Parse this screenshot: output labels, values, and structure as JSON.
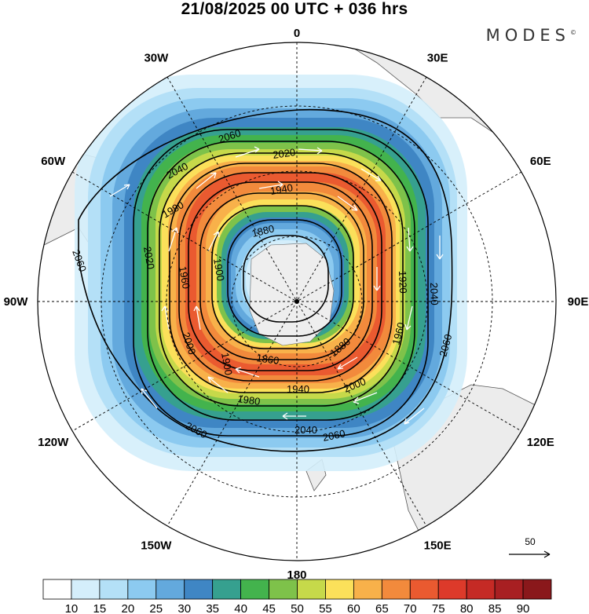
{
  "title": "21/08/2025  00 UTC  + 036 hrs",
  "brand": "MODES",
  "brand_mark": "©",
  "longitude_labels": [
    {
      "text": "0",
      "angle": 0
    },
    {
      "text": "30E",
      "angle": 30
    },
    {
      "text": "60E",
      "angle": 60
    },
    {
      "text": "90E",
      "angle": 90
    },
    {
      "text": "120E",
      "angle": 120
    },
    {
      "text": "150E",
      "angle": 150
    },
    {
      "text": "180",
      "angle": 180
    },
    {
      "text": "150W",
      "angle": 210
    },
    {
      "text": "120W",
      "angle": 240
    },
    {
      "text": "90W",
      "angle": 270
    },
    {
      "text": "60W",
      "angle": 300
    },
    {
      "text": "30W",
      "angle": 330
    }
  ],
  "contour_labels": [
    "2060",
    "2040",
    "2020",
    "2000",
    "1980",
    "1960",
    "1940",
    "1920",
    "1900",
    "1880",
    "1860"
  ],
  "reference_vector": {
    "value": "50"
  },
  "colorbar": {
    "ticks": [
      "10",
      "15",
      "20",
      "25",
      "30",
      "35",
      "40",
      "45",
      "50",
      "55",
      "60",
      "65",
      "70",
      "75",
      "80",
      "85",
      "90"
    ],
    "colors": [
      "#ffffff",
      "#d4eefb",
      "#b4e0f7",
      "#8ccaf0",
      "#63a9dd",
      "#3f86c4",
      "#36a08f",
      "#43b34d",
      "#7ec24a",
      "#c6d94a",
      "#fbe05a",
      "#f8b14a",
      "#f28a3c",
      "#ea5a30",
      "#dd3a2a",
      "#c52a25",
      "#a81f22",
      "#8a181b"
    ]
  },
  "chart_data": {
    "type": "polar-stereographic-map",
    "projection": "South polar stereographic",
    "field": "Jet speed shading with height contours and wind vectors",
    "valid_time": "21/08/2025 00 UTC",
    "forecast_lead": "+036 hrs",
    "contour_levels": [
      1860,
      1880,
      1900,
      1920,
      1940,
      1960,
      1980,
      2000,
      2020,
      2040,
      2060
    ],
    "shading_levels": [
      10,
      15,
      20,
      25,
      30,
      35,
      40,
      45,
      50,
      55,
      60,
      65,
      70,
      75,
      80,
      85,
      90
    ],
    "reference_vector": 50
  }
}
